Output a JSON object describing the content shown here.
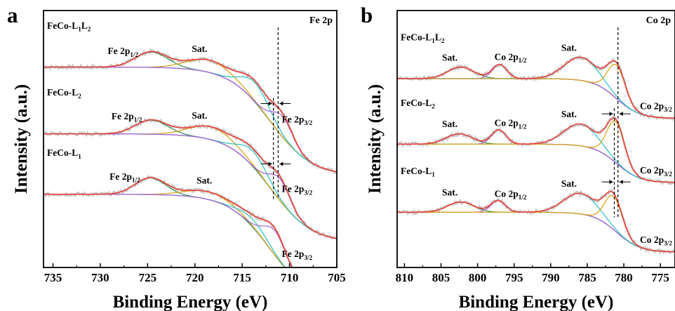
{
  "chart_data": [
    {
      "type": "line",
      "panel_letter": "a",
      "corner_label": "Fe 2p",
      "xlabel": "Binding Energy (eV)",
      "ylabel": "Intensity (a.u.)",
      "xlim": [
        736,
        705
      ],
      "x_reversed": true,
      "x_ticks": [
        "735",
        "730",
        "725",
        "720",
        "715",
        "710",
        "705"
      ],
      "x_tick_values": [
        735,
        730,
        725,
        720,
        715,
        710,
        705
      ],
      "reference_lines_ev": [
        711.2,
        711.7
      ],
      "stacks": [
        {
          "name": "FeCo-L₁L₂",
          "name_main": "FeCo-L",
          "name_sub1": "1",
          "name_mid": "L",
          "name_sub2": "2",
          "baseline_left": 0.78,
          "baseline_right": 0.355,
          "sigmoid_center": 712,
          "sigmoid_width": 2.2,
          "peaks": [
            {
              "label": "Fe 2p",
              "sub": "1/2",
              "center": 724.6,
              "height": 0.06,
              "width": 1.7,
              "color": "#3a9a5a"
            },
            {
              "label": "Sat.",
              "sub": "",
              "center": 718.5,
              "height": 0.048,
              "width": 2.3,
              "color": "#d9a520"
            },
            {
              "label": "",
              "sub": "",
              "center": 713.6,
              "height": 0.075,
              "width": 1.5,
              "color": "#34c4c4"
            },
            {
              "label": "Fe 2p",
              "sub": "3/2",
              "center": 710.7,
              "height": 0.08,
              "width": 1.1,
              "color": "#b069d8"
            }
          ],
          "labels": [
            {
              "text": "Fe 2p",
              "sub": "1/2",
              "ev": 727.6,
              "dy": 0.0
            },
            {
              "text": "Sat.",
              "sub": "",
              "ev": 719.5,
              "dy": 0.0
            },
            {
              "text": "Fe 2p",
              "sub": "3/2",
              "ev": 709.2,
              "dy": 0.0
            }
          ]
        },
        {
          "name": "FeCo-L₂",
          "name_main": "FeCo-L",
          "name_sub1": "2",
          "name_mid": "",
          "name_sub2": "",
          "baseline_left": 0.52,
          "baseline_right": 0.095,
          "sigmoid_center": 712,
          "sigmoid_width": 2.2,
          "peaks": [
            {
              "label": "Fe 2p",
              "sub": "1/2",
              "center": 724.6,
              "height": 0.055,
              "width": 1.7,
              "color": "#3a9a5a"
            },
            {
              "label": "Sat.",
              "sub": "",
              "center": 718.3,
              "height": 0.05,
              "width": 2.3,
              "color": "#d9a520"
            },
            {
              "label": "",
              "sub": "",
              "center": 713.8,
              "height": 0.06,
              "width": 1.5,
              "color": "#34c4c4"
            },
            {
              "label": "Fe 2p",
              "sub": "3/2",
              "center": 711.0,
              "height": 0.085,
              "width": 1.1,
              "color": "#b069d8"
            }
          ],
          "labels": [
            {
              "text": "Fe 2p",
              "sub": "1/2",
              "ev": 727.2,
              "dy": 0.0
            },
            {
              "text": "Sat.",
              "sub": "",
              "ev": 719.5,
              "dy": 0.0
            },
            {
              "text": "Fe 2p",
              "sub": "3/2",
              "ev": 709.2,
              "dy": 0.0
            }
          ]
        },
        {
          "name": "FeCo-L₁",
          "name_main": "FeCo-L",
          "name_sub1": "1",
          "name_mid": "",
          "name_sub2": "",
          "baseline_left": 0.285,
          "baseline_right": -0.145,
          "sigmoid_center": 712,
          "sigmoid_width": 2.2,
          "peaks": [
            {
              "label": "Fe 2p",
              "sub": "1/2",
              "center": 724.7,
              "height": 0.065,
              "width": 1.6,
              "color": "#3a9a5a"
            },
            {
              "label": "Sat.",
              "sub": "",
              "center": 718.6,
              "height": 0.03,
              "width": 2.4,
              "color": "#d9a520"
            },
            {
              "label": "",
              "sub": "",
              "center": 713.8,
              "height": 0.03,
              "width": 1.5,
              "color": "#34c4c4"
            },
            {
              "label": "Fe 2p",
              "sub": "3/2",
              "center": 711.5,
              "height": 0.095,
              "width": 1.2,
              "color": "#b069d8"
            }
          ],
          "labels": [
            {
              "text": "Fe 2p",
              "sub": "1/2",
              "ev": 727.4,
              "dy": 0.0
            },
            {
              "text": "Sat.",
              "sub": "",
              "ev": 719.0,
              "dy": 0.0
            },
            {
              "text": "Fe 2p",
              "sub": "3/2",
              "ev": 709.2,
              "dy": 0.0
            }
          ]
        }
      ]
    },
    {
      "type": "line",
      "panel_letter": "b",
      "corner_label": "Co 2p",
      "xlabel": "Binding Energy (eV)",
      "ylabel": "Intensity (a.u.)",
      "xlim": [
        811,
        773
      ],
      "x_reversed": true,
      "x_ticks": [
        "810",
        "805",
        "800",
        "795",
        "790",
        "785",
        "780",
        "775"
      ],
      "x_tick_values": [
        810,
        805,
        800,
        795,
        790,
        785,
        780,
        775
      ],
      "reference_lines_ev": [
        780.8,
        781.3
      ],
      "stacks": [
        {
          "name": "FeCo-L₁L₂",
          "name_main": "FeCo-L",
          "name_sub1": "1",
          "name_mid": "L",
          "name_sub2": "2",
          "baseline_left": 0.735,
          "baseline_right": 0.58,
          "sigmoid_center": 781,
          "sigmoid_width": 1.6,
          "peaks": [
            {
              "label": "Sat.",
              "sub": "",
              "center": 802.3,
              "height": 0.045,
              "width": 1.8,
              "color": "#3a9a5a"
            },
            {
              "label": "Co 2p",
              "sub": "1/2",
              "center": 797.0,
              "height": 0.055,
              "width": 1.0,
              "color": "#b069d8"
            },
            {
              "label": "Sat.",
              "sub": "",
              "center": 785.8,
              "height": 0.09,
              "width": 2.3,
              "color": "#34c4c4"
            },
            {
              "label": "Co 2p",
              "sub": "3/2",
              "center": 781.0,
              "height": 0.13,
              "width": 1.2,
              "color": "#d9a520"
            }
          ],
          "labels": [
            {
              "text": "Sat.",
              "sub": "",
              "ev": 803.8,
              "dy": 0.0
            },
            {
              "text": "Co 2p",
              "sub": "1/2",
              "ev": 795.5,
              "dy": 0.0
            },
            {
              "text": "Sat.",
              "sub": "",
              "ev": 787.5,
              "dy": 0.0
            },
            {
              "text": "Co 2p",
              "sub": "3/2",
              "ev": 775.6,
              "dy": 0.0
            }
          ]
        },
        {
          "name": "FeCo-L₂",
          "name_main": "FeCo-L",
          "name_sub1": "2",
          "name_mid": "",
          "name_sub2": "",
          "baseline_left": 0.48,
          "baseline_right": 0.33,
          "sigmoid_center": 781,
          "sigmoid_width": 1.6,
          "peaks": [
            {
              "label": "Sat.",
              "sub": "",
              "center": 802.5,
              "height": 0.04,
              "width": 1.8,
              "color": "#3a9a5a"
            },
            {
              "label": "Co 2p",
              "sub": "1/2",
              "center": 797.1,
              "height": 0.055,
              "width": 1.0,
              "color": "#b069d8"
            },
            {
              "label": "Sat.",
              "sub": "",
              "center": 785.9,
              "height": 0.085,
              "width": 2.3,
              "color": "#34c4c4"
            },
            {
              "label": "Co 2p",
              "sub": "3/2",
              "center": 781.1,
              "height": 0.16,
              "width": 1.2,
              "color": "#d9a520"
            }
          ],
          "labels": [
            {
              "text": "Sat.",
              "sub": "",
              "ev": 803.8,
              "dy": 0.0
            },
            {
              "text": "Co 2p",
              "sub": "1/2",
              "ev": 795.5,
              "dy": 0.0
            },
            {
              "text": "Sat.",
              "sub": "",
              "ev": 787.5,
              "dy": 0.0
            },
            {
              "text": "Co 2p",
              "sub": "3/2",
              "ev": 775.6,
              "dy": 0.0
            }
          ]
        },
        {
          "name": "FeCo-L₁",
          "name_main": "FeCo-L",
          "name_sub1": "1",
          "name_mid": "",
          "name_sub2": "",
          "baseline_left": 0.215,
          "baseline_right": 0.06,
          "sigmoid_center": 781,
          "sigmoid_width": 1.6,
          "peaks": [
            {
              "label": "Sat.",
              "sub": "",
              "center": 802.3,
              "height": 0.04,
              "width": 1.8,
              "color": "#3a9a5a"
            },
            {
              "label": "Co 2p",
              "sub": "1/2",
              "center": 797.2,
              "height": 0.045,
              "width": 1.0,
              "color": "#b069d8"
            },
            {
              "label": "Sat.",
              "sub": "",
              "center": 785.9,
              "height": 0.08,
              "width": 2.3,
              "color": "#34c4c4"
            },
            {
              "label": "Co 2p",
              "sub": "3/2",
              "center": 781.4,
              "height": 0.13,
              "width": 1.2,
              "color": "#d9a520"
            }
          ],
          "labels": [
            {
              "text": "Sat.",
              "sub": "",
              "ev": 803.8,
              "dy": 0.0
            },
            {
              "text": "Co 2p",
              "sub": "1/2",
              "ev": 795.5,
              "dy": 0.0
            },
            {
              "text": "Sat.",
              "sub": "",
              "ev": 787.5,
              "dy": 0.0
            },
            {
              "text": "Co 2p",
              "sub": "3/2",
              "ev": 775.6,
              "dy": 0.0
            }
          ]
        }
      ]
    }
  ],
  "colors": {
    "envelope": "#e8413a",
    "raw_data": "#c9c9c9",
    "background": "#4a62c8"
  }
}
